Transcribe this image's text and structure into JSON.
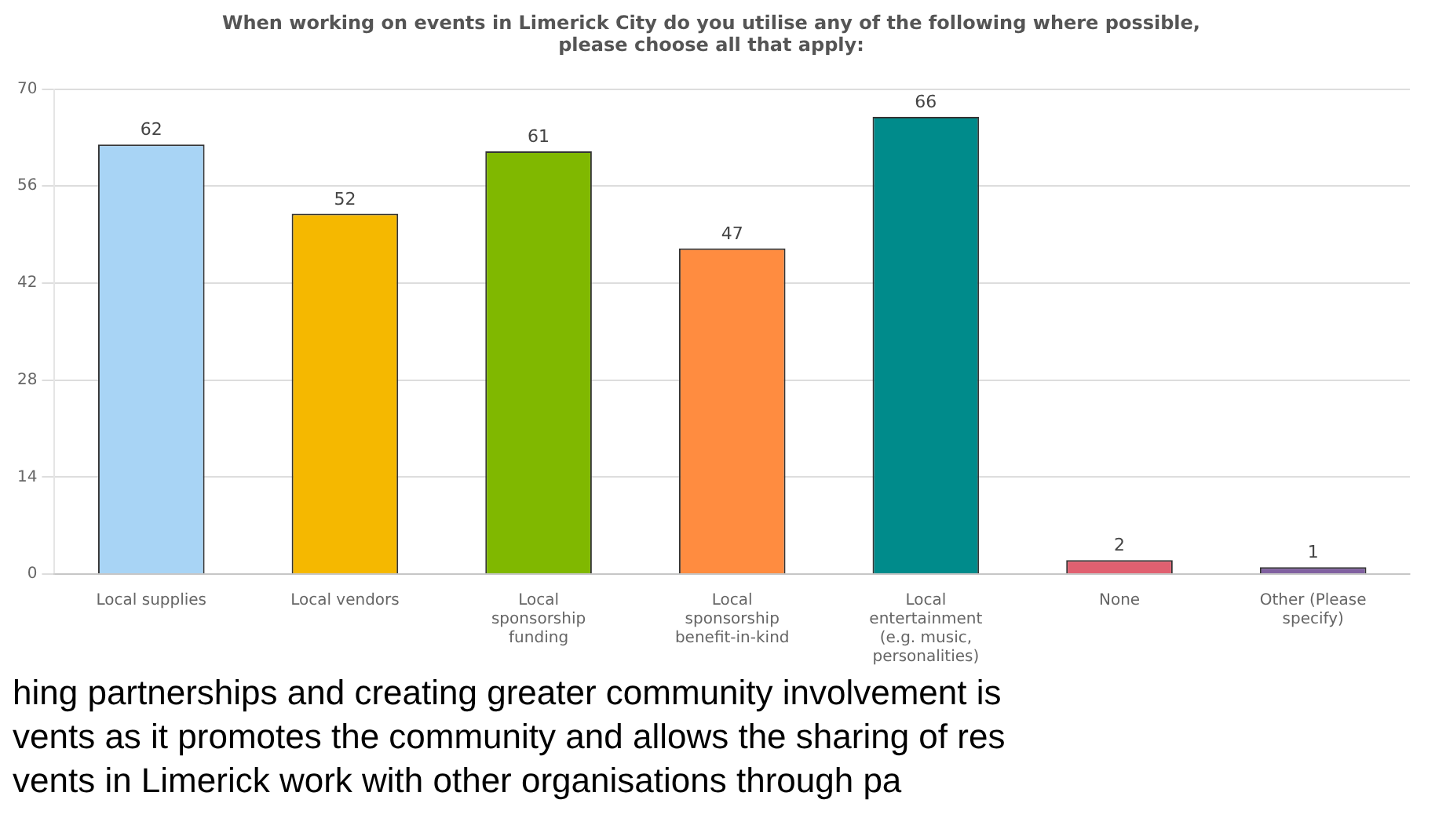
{
  "chart_data": {
    "type": "bar",
    "title": [
      "When working on events in Limerick City do you utilise any of the following where possible,",
      "please choose all that apply:"
    ],
    "categories": [
      "Local supplies",
      "Local vendors",
      "Local sponsorship funding",
      "Local sponsorship benefit-in-kind",
      "Local entertainment (e.g. music, personalities)",
      "None",
      "Other (Please specify)"
    ],
    "values": [
      62,
      52,
      61,
      47,
      66,
      2,
      1
    ],
    "colors": [
      "#a8d4f5",
      "#f5b800",
      "#80b800",
      "#ff8c40",
      "#008b8b",
      "#e06070",
      "#8060a0"
    ],
    "ylim": [
      0,
      70
    ],
    "yticks": [
      0,
      14,
      28,
      42,
      56,
      70
    ],
    "grid": "y",
    "data_labels": true,
    "annotations": [
      "hing partnerships and creating greater community involvement is",
      "vents as it promotes the community and allows the sharing of res",
      "vents in Limerick work with other organisations through pa"
    ]
  }
}
